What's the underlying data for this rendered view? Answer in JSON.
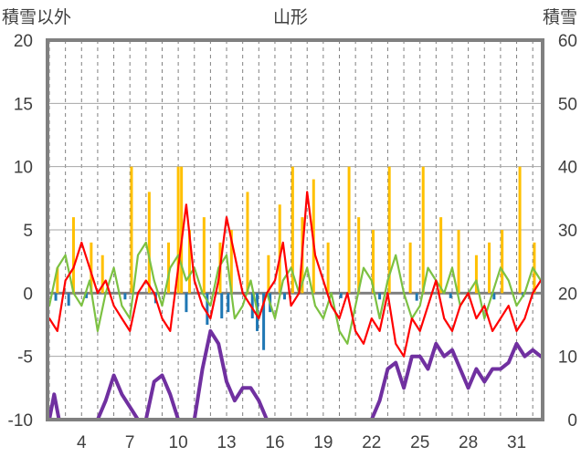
{
  "chart_data": {
    "type": "line",
    "title": "山形",
    "ylabel_left": "積雪以外",
    "ylabel_right": "積雪",
    "y_left_range": [
      -10,
      20
    ],
    "y_left_ticks": [
      20,
      15,
      10,
      5,
      0,
      -5,
      -10
    ],
    "y_right_range": [
      0,
      60
    ],
    "y_right_ticks": [
      60,
      50,
      40,
      30,
      20,
      10,
      0
    ],
    "x_range": [
      2,
      32.5
    ],
    "x_ticks": [
      4,
      7,
      10,
      13,
      16,
      19,
      22,
      25,
      28,
      31
    ],
    "grid": {
      "vertical_dashed_every_day": true,
      "horizontal_solid": true
    },
    "series": [
      {
        "color": "#7CC142",
        "axis": "left",
        "type": "line",
        "x": [
          2.0,
          2.5,
          3.0,
          3.5,
          4.0,
          4.5,
          5.0,
          5.5,
          6.0,
          6.5,
          7.0,
          7.5,
          8.0,
          8.5,
          9.0,
          9.5,
          10.0,
          10.5,
          11.0,
          11.5,
          12.0,
          12.5,
          13.0,
          13.5,
          14.0,
          14.5,
          15.0,
          15.5,
          16.0,
          16.5,
          17.0,
          17.5,
          18.0,
          18.5,
          19.0,
          19.5,
          20.0,
          20.5,
          21.0,
          21.5,
          22.0,
          22.5,
          23.0,
          23.5,
          24.0,
          24.5,
          25.0,
          25.5,
          26.0,
          26.5,
          27.0,
          27.5,
          28.0,
          28.5,
          29.0,
          29.5,
          30.0,
          30.5,
          31.0,
          31.5,
          32.0,
          32.5
        ],
        "values": [
          -1,
          2,
          3,
          0,
          -1,
          1,
          -3,
          0,
          2,
          -1,
          -2,
          3,
          4,
          1,
          -1,
          2,
          3,
          1,
          2,
          0,
          -1,
          2,
          3,
          -2,
          -1,
          1,
          -2,
          0,
          -2,
          1,
          2,
          0,
          2,
          -1,
          -2,
          0,
          -3,
          -4,
          -1,
          2,
          1,
          -2,
          1,
          3,
          0,
          -2,
          -1,
          2,
          1,
          0,
          2,
          -1,
          0,
          1,
          -2,
          0,
          2,
          1,
          -1,
          0,
          2,
          1
        ]
      },
      {
        "color": "#FF0000",
        "axis": "left",
        "type": "line",
        "x": [
          2.0,
          2.5,
          3.0,
          3.5,
          4.0,
          4.5,
          5.0,
          5.5,
          6.0,
          6.5,
          7.0,
          7.5,
          8.0,
          8.5,
          9.0,
          9.5,
          10.0,
          10.5,
          11.0,
          11.5,
          12.0,
          12.5,
          13.0,
          13.5,
          14.0,
          14.5,
          15.0,
          15.5,
          16.0,
          16.5,
          17.0,
          17.5,
          18.0,
          18.5,
          19.0,
          19.5,
          20.0,
          20.5,
          21.0,
          21.5,
          22.0,
          22.5,
          23.0,
          23.5,
          24.0,
          24.5,
          25.0,
          25.5,
          26.0,
          26.5,
          27.0,
          27.5,
          28.0,
          28.5,
          29.0,
          29.5,
          30.0,
          30.5,
          31.0,
          31.5,
          32.0,
          32.5
        ],
        "values": [
          -2,
          -3,
          1,
          2,
          4,
          2,
          0,
          1,
          -1,
          -2,
          -3,
          0,
          1,
          0,
          -2,
          -3,
          2,
          7,
          1,
          -1,
          -2,
          1,
          6,
          3,
          0,
          -1,
          -2,
          0,
          1,
          4,
          -1,
          0,
          8,
          3,
          1,
          -1,
          -2,
          0,
          -3,
          -4,
          -2,
          -3,
          0,
          -4,
          -5,
          -2,
          -3,
          -1,
          1,
          -2,
          -3,
          -1,
          0,
          -2,
          -1,
          -3,
          -2,
          -1,
          -3,
          -2,
          0,
          1
        ]
      },
      {
        "color": "#FFC000",
        "axis": "left",
        "type": "bar",
        "x": [
          2.5,
          3.5,
          4.6,
          5.3,
          7.1,
          8.2,
          9.4,
          10.0,
          10.2,
          10.7,
          11.6,
          12.6,
          13.3,
          14.3,
          15.6,
          16.3,
          17.1,
          17.7,
          18.4,
          19.3,
          20.6,
          21.2,
          22.1,
          23.1,
          24.4,
          25.2,
          26.3,
          27.4,
          28.5,
          29.3,
          30.1,
          31.2,
          32.1
        ],
        "values": [
          2,
          6,
          4,
          3,
          10,
          8,
          4,
          10,
          10,
          5,
          6,
          4,
          5,
          8,
          3,
          7,
          10,
          6,
          9,
          4,
          10,
          6,
          5,
          10,
          4,
          10,
          6,
          5,
          3,
          4,
          5,
          10,
          4
        ]
      },
      {
        "color": "#1F77B4",
        "axis": "left",
        "type": "bar",
        "x": [
          2.4,
          3.2,
          4.3,
          6.7,
          8.6,
          10.5,
          11.8,
          12.7,
          13.1,
          14.6,
          14.9,
          15.3,
          15.7,
          16.6,
          20.1,
          22.5,
          24.8,
          26.9,
          29.6,
          31.4
        ],
        "values": [
          -0.6,
          -1,
          -0.4,
          -0.5,
          -0.8,
          -1.5,
          -2.5,
          -2,
          -1.5,
          -2,
          -3,
          -4.5,
          -1.5,
          -0.5,
          -0.4,
          -0.5,
          -0.6,
          -0.4,
          -0.5,
          -0.3
        ]
      },
      {
        "color": "#7030A0",
        "axis": "right",
        "type": "line",
        "x": [
          2.0,
          2.3,
          2.6,
          3.0,
          4.0,
          4.5,
          5.0,
          5.5,
          6.0,
          6.5,
          7.0,
          7.5,
          8.0,
          8.5,
          9.0,
          9.5,
          10.0,
          10.5,
          11.0,
          11.5,
          12.0,
          12.5,
          13.0,
          13.5,
          14.0,
          14.5,
          15.0,
          15.5,
          16.0,
          17.0,
          18.0,
          19.0,
          20.0,
          20.5,
          21.0,
          21.5,
          22.0,
          22.5,
          23.0,
          23.5,
          24.0,
          24.5,
          25.0,
          25.5,
          26.0,
          26.5,
          27.0,
          27.5,
          28.0,
          28.5,
          29.0,
          29.5,
          30.0,
          30.5,
          31.0,
          31.5,
          32.0,
          32.5
        ],
        "values": [
          0,
          4,
          0,
          0,
          0,
          0,
          0,
          3,
          7,
          4,
          2,
          0,
          0,
          6,
          7,
          4,
          0,
          0,
          0,
          8,
          14,
          12,
          6,
          3,
          5,
          5,
          3,
          0,
          0,
          0,
          0,
          0,
          0,
          0,
          0,
          0,
          0,
          3,
          8,
          9,
          5,
          10,
          10,
          8,
          12,
          10,
          11,
          8,
          5,
          8,
          6,
          8,
          8,
          9,
          12,
          10,
          11,
          10
        ]
      }
    ]
  }
}
